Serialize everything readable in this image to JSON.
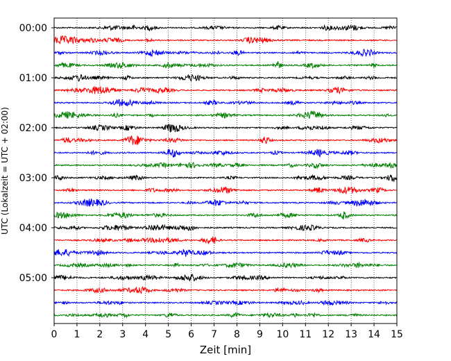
{
  "chart_data": {
    "type": "line",
    "title": "",
    "xlabel": "Zeit  [min]",
    "ylabel": "UTC (Lokalzeit = UTC + 02:00)",
    "xlim": [
      0,
      15
    ],
    "x_ticks": [
      "0",
      "1",
      "2",
      "3",
      "4",
      "5",
      "6",
      "7",
      "8",
      "9",
      "10",
      "11",
      "12",
      "13",
      "14",
      "15"
    ],
    "y_ticks": [
      "00:00",
      "01:00",
      "02:00",
      "03:00",
      "04:00",
      "05:00"
    ],
    "vertical_grid": "dotted at each minute",
    "trace_colors": [
      "#000000",
      "#ff0000",
      "#0000ff",
      "#007f00"
    ],
    "trace_interval_min": 15,
    "trace_count": 24,
    "traces": [
      {
        "start": "00:00",
        "color": "#000000"
      },
      {
        "start": "00:15",
        "color": "#ff0000"
      },
      {
        "start": "00:30",
        "color": "#0000ff"
      },
      {
        "start": "00:45",
        "color": "#007f00"
      },
      {
        "start": "01:00",
        "color": "#000000"
      },
      {
        "start": "01:15",
        "color": "#ff0000"
      },
      {
        "start": "01:30",
        "color": "#0000ff"
      },
      {
        "start": "01:45",
        "color": "#007f00"
      },
      {
        "start": "02:00",
        "color": "#000000"
      },
      {
        "start": "02:15",
        "color": "#ff0000"
      },
      {
        "start": "02:30",
        "color": "#0000ff"
      },
      {
        "start": "02:45",
        "color": "#007f00"
      },
      {
        "start": "03:00",
        "color": "#000000"
      },
      {
        "start": "03:15",
        "color": "#ff0000"
      },
      {
        "start": "03:30",
        "color": "#0000ff"
      },
      {
        "start": "03:45",
        "color": "#007f00"
      },
      {
        "start": "04:00",
        "color": "#000000"
      },
      {
        "start": "04:15",
        "color": "#ff0000"
      },
      {
        "start": "04:30",
        "color": "#0000ff"
      },
      {
        "start": "04:45",
        "color": "#007f00"
      },
      {
        "start": "05:00",
        "color": "#000000"
      },
      {
        "start": "05:15",
        "color": "#ff0000"
      },
      {
        "start": "05:30",
        "color": "#0000ff"
      },
      {
        "start": "05:45",
        "color": "#007f00"
      }
    ]
  }
}
